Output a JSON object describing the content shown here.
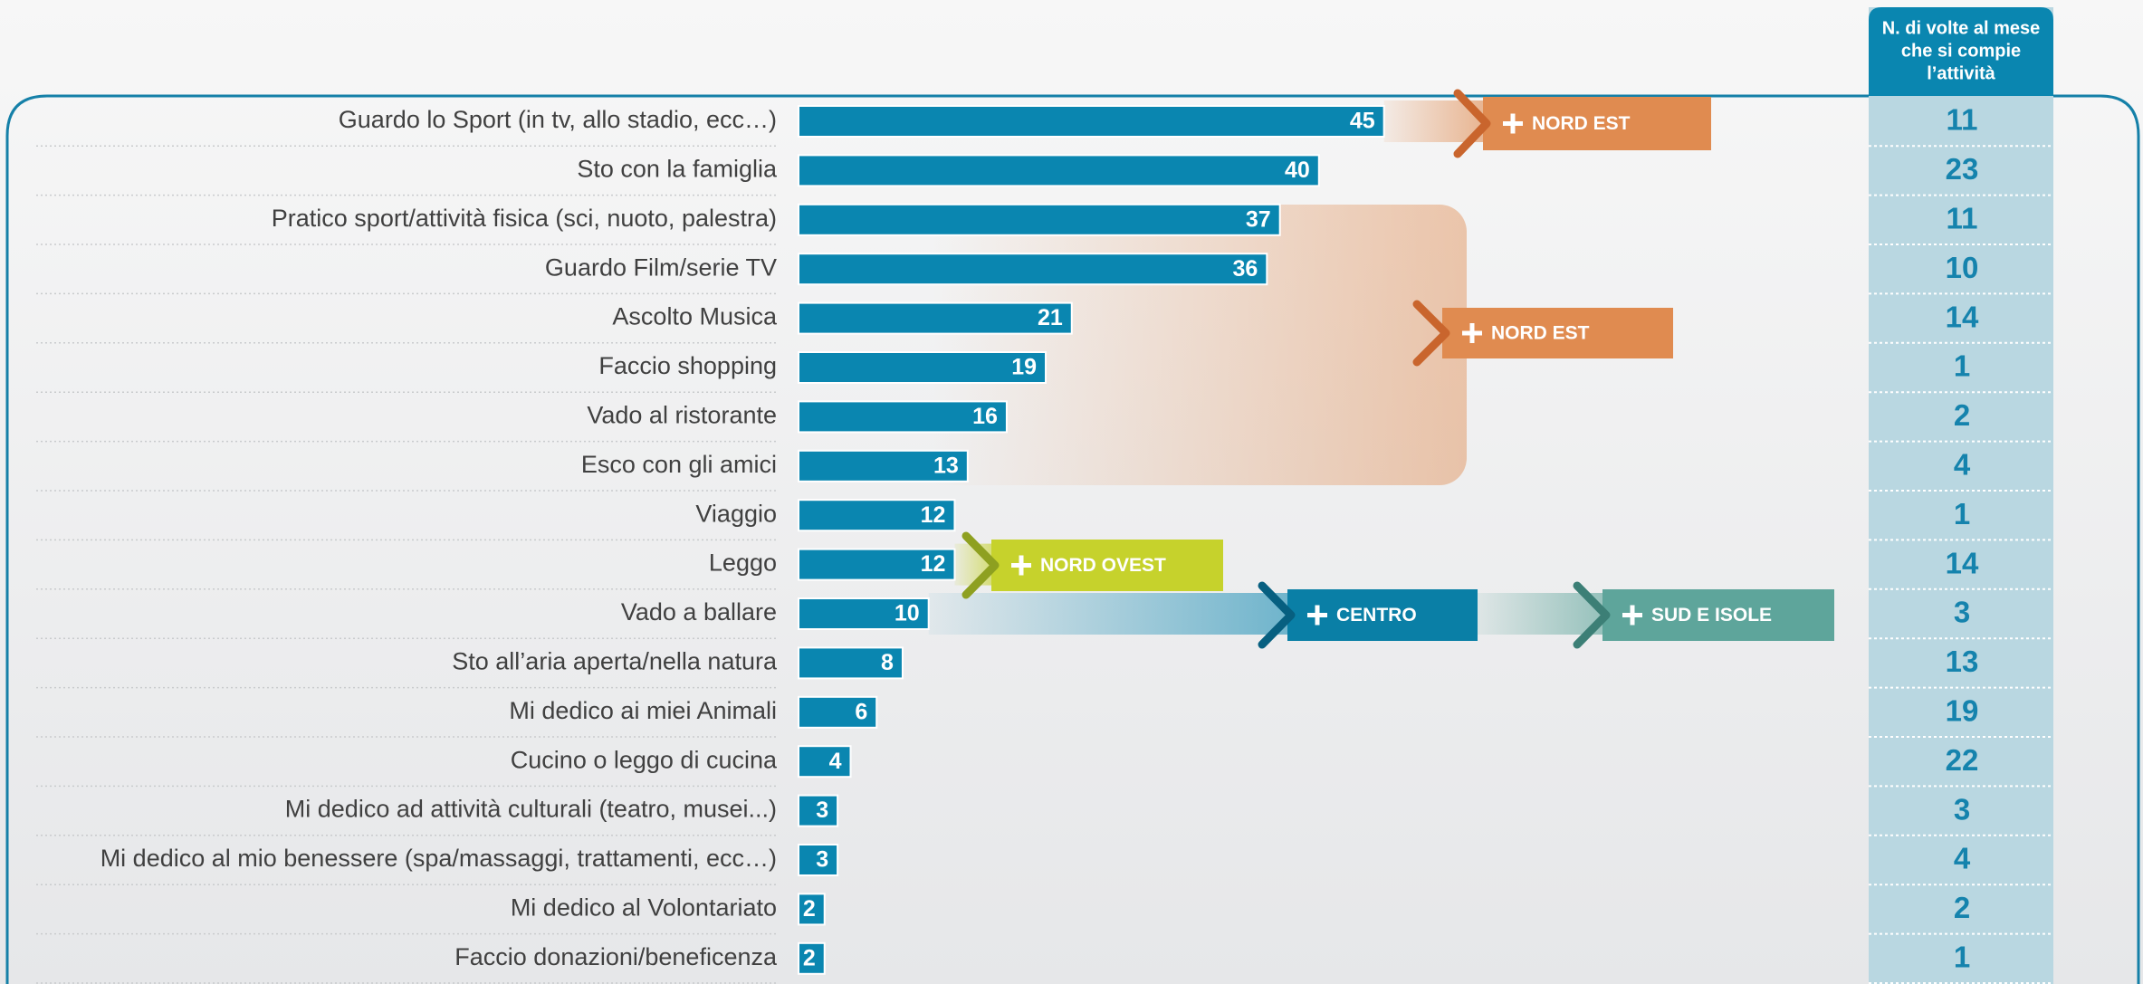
{
  "chart_data": {
    "type": "bar",
    "orientation": "horizontal",
    "categories": [
      "Guardo lo Sport (in tv, allo stadio, ecc…)",
      "Sto con la famiglia",
      "Pratico sport/attività fisica (sci, nuoto, palestra)",
      "Guardo Film/serie TV",
      "Ascolto Musica",
      "Faccio shopping",
      "Vado al ristorante",
      "Esco con gli amici",
      "Viaggio",
      "Leggo",
      "Vado a ballare",
      "Sto all’aria aperta/nella natura",
      "Mi dedico ai miei Animali",
      "Cucino o leggo di cucina",
      "Mi dedico ad attività culturali (teatro, musei...)",
      "Mi dedico al mio benessere (spa/massaggi, trattamenti, ecc…)",
      "Mi dedico al Volontariato",
      "Faccio donazioni/beneficenza"
    ],
    "values": [
      45,
      40,
      37,
      36,
      21,
      19,
      16,
      13,
      12,
      12,
      10,
      8,
      6,
      4,
      3,
      3,
      2,
      2
    ],
    "color": "#0a86b0"
  },
  "side_column": {
    "title": [
      "N. di volte al mese",
      "che si compie",
      "l’attività"
    ],
    "values": [
      11,
      23,
      11,
      10,
      14,
      1,
      2,
      4,
      1,
      14,
      3,
      13,
      19,
      22,
      3,
      4,
      2,
      1
    ]
  },
  "callouts": [
    {
      "label": "NORD EST",
      "color": "#e08b50"
    },
    {
      "label": "NORD EST",
      "color": "#e08b50"
    },
    {
      "label": "NORD OVEST",
      "color": "#c6d22c"
    },
    {
      "label": "CENTRO",
      "color": "#0a7fa6"
    },
    {
      "label": "SUD E ISOLE",
      "color": "#5ea59b"
    }
  ]
}
